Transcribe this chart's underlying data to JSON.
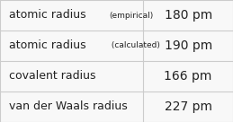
{
  "rows": [
    {
      "label": "atomic radius",
      "sublabel": "(empirical)",
      "value": "180 pm"
    },
    {
      "label": "atomic radius",
      "sublabel": " (calculated)",
      "value": "190 pm"
    },
    {
      "label": "covalent radius",
      "sublabel": "",
      "value": "166 pm"
    },
    {
      "label": "van der Waals radius",
      "sublabel": "",
      "value": "227 pm"
    }
  ],
  "col_split": 0.615,
  "background_color": "#f8f8f8",
  "line_color": "#cccccc",
  "text_color": "#222222",
  "label_fontsize": 9.0,
  "sublabel_fontsize": 6.5,
  "value_fontsize": 10.0,
  "fig_width": 2.59,
  "fig_height": 1.36,
  "dpi": 100
}
